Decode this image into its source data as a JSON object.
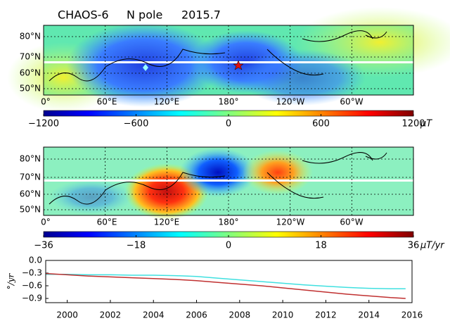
{
  "header": {
    "model": "CHAOS-6",
    "region": "N pole",
    "epoch": "2015.7"
  },
  "chart_data": [
    {
      "type": "map",
      "lat_labels": [
        "80°N",
        "70°N",
        "60°N",
        "50°N"
      ],
      "lon_labels": [
        "0°",
        "60°E",
        "120°E",
        "180°",
        "120°W",
        "60°W"
      ],
      "clim": [
        -1200,
        1200
      ],
      "cticks": [
        {
          "value": -1200,
          "label": "−1200"
        },
        {
          "value": -600,
          "label": "−600"
        },
        0,
        600,
        1200
      ],
      "unit": "μT"
    },
    {
      "type": "map",
      "lat_labels": [
        "80°N",
        "70°N",
        "60°N",
        "50°N"
      ],
      "lon_labels": [
        "0°",
        "60°E",
        "120°E",
        "180°",
        "120°W",
        "60°W"
      ],
      "clim": [
        -36,
        36
      ],
      "cticks": [
        {
          "value": -36,
          "label": "−36"
        },
        {
          "value": -18,
          "label": "−18"
        },
        0,
        18,
        36
      ],
      "unit": "μT/yr"
    },
    {
      "type": "line",
      "y_label": "°/yr",
      "x": [
        1999,
        2000,
        2001,
        2002,
        2003,
        2004,
        2005,
        2006,
        2007,
        2008,
        2009,
        2010,
        2011,
        2012,
        2013,
        2014,
        2015,
        2015.7
      ],
      "series": [
        {
          "color": "#40e0e0",
          "values": [
            -0.33,
            -0.33,
            -0.34,
            -0.34,
            -0.35,
            -0.35,
            -0.36,
            -0.38,
            -0.42,
            -0.46,
            -0.5,
            -0.54,
            -0.58,
            -0.61,
            -0.64,
            -0.66,
            -0.67,
            -0.67
          ]
        },
        {
          "color": "#c03030",
          "values": [
            -0.31,
            -0.34,
            -0.37,
            -0.39,
            -0.41,
            -0.43,
            -0.45,
            -0.48,
            -0.52,
            -0.56,
            -0.6,
            -0.65,
            -0.7,
            -0.75,
            -0.8,
            -0.84,
            -0.88,
            -0.9
          ]
        }
      ],
      "xlim": [
        1999,
        2016
      ],
      "xticks": [
        2000,
        2002,
        2004,
        2006,
        2008,
        2010,
        2012,
        2014,
        2016
      ],
      "ylim": [
        -1.0,
        0.0
      ],
      "yticks": [
        {
          "value": 0.0,
          "label": "0.0"
        },
        {
          "value": -0.3,
          "label": "−0.3"
        },
        {
          "value": -0.6,
          "label": "−0.6"
        },
        {
          "value": -0.9,
          "label": "−0.9"
        }
      ]
    }
  ]
}
